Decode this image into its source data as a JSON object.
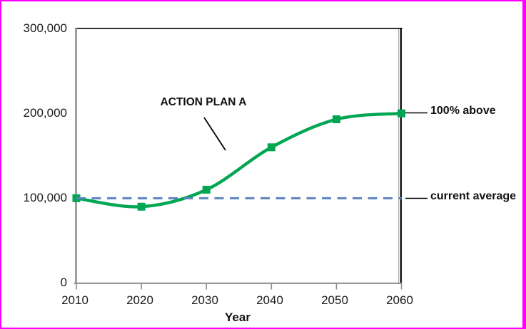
{
  "page": {
    "background_color": "#FFFFFF",
    "border_color": "#FF00FF"
  },
  "chart_data": {
    "type": "line",
    "title": "",
    "xlabel": "Year",
    "ylabel": "",
    "x": [
      2010,
      2020,
      2030,
      2040,
      2050,
      2060
    ],
    "xtick_labels": [
      "2010",
      "2020",
      "2030",
      "2040",
      "2050",
      "2060"
    ],
    "yticks": [
      300000,
      200000,
      100000,
      0
    ],
    "ytick_labels": [
      "300,000",
      "200,000",
      "100,000",
      "0"
    ],
    "xlim": [
      2010,
      2060
    ],
    "ylim": [
      0,
      300000
    ],
    "grid": false,
    "legend": "none",
    "series": [
      {
        "name": "ACTION PLAN A",
        "type": "smooth-line",
        "marker": "square",
        "color": "#00A651",
        "values": [
          100000,
          90000,
          110000,
          160000,
          193000,
          200000
        ]
      }
    ],
    "reference_line": {
      "label": "current average",
      "value": 100000,
      "style": "dashed",
      "color": "#5B83BD"
    },
    "annotations": [
      {
        "id": "action-plan",
        "text": "ACTION PLAN A"
      },
      {
        "id": "pct-above",
        "text": "100% above"
      },
      {
        "id": "current-average",
        "text": "current average"
      }
    ]
  }
}
